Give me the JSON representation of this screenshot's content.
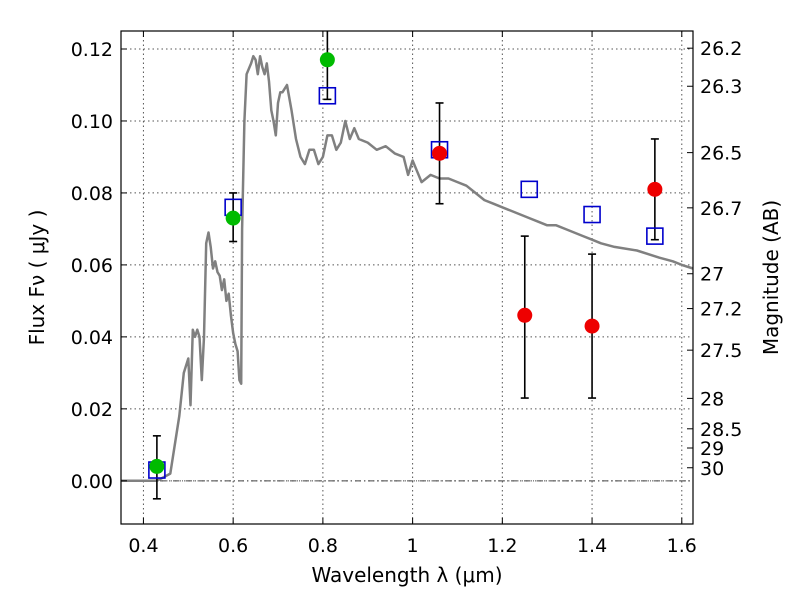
{
  "chart_data": {
    "type": "scatter",
    "title": "",
    "xlabel": "Wavelength  λ (μm)",
    "ylabel": "Flux  Fν  ( μJy )",
    "y2label": "Magnitude (AB)",
    "xlim": [
      0.35,
      1.625
    ],
    "ylim": [
      -0.012,
      0.125
    ],
    "grid": true,
    "x_ticks": [
      0.4,
      0.6,
      0.8,
      1.0,
      1.2,
      1.4,
      1.6
    ],
    "x_tick_labels": [
      "0.4",
      "0.6",
      "0.8",
      "1",
      "1.2",
      "1.4",
      "1.6"
    ],
    "y_ticks": [
      0.0,
      0.02,
      0.04,
      0.06,
      0.08,
      0.1,
      0.12
    ],
    "y_tick_labels": [
      "0.00",
      "0.02",
      "0.04",
      "0.06",
      "0.08",
      "0.10",
      "0.12"
    ],
    "mag_tick_labels": [
      "26.2",
      "26.3",
      "26.5",
      "26.7",
      "27",
      "27.2",
      "27.5",
      "28",
      "28.5",
      "29",
      "30"
    ],
    "mag_tick_values": [
      26.2,
      26.3,
      26.5,
      26.7,
      27.0,
      27.2,
      27.5,
      28.0,
      28.5,
      29.0,
      30.0
    ],
    "zero_line": true,
    "colors": {
      "model": "#808080",
      "green_points": "#00bb00",
      "red_points": "#ee0000",
      "squares": "#0000cc",
      "errorbars": "#000000",
      "frame": "#000000"
    },
    "series": [
      {
        "kind": "line",
        "x": [
          0.35,
          0.43,
          0.46,
          0.48,
          0.49,
          0.5,
          0.505,
          0.51,
          0.515,
          0.52,
          0.525,
          0.53,
          0.535,
          0.54,
          0.545,
          0.55,
          0.555,
          0.56,
          0.565,
          0.57,
          0.575,
          0.58,
          0.585,
          0.59,
          0.595,
          0.6,
          0.605,
          0.61,
          0.614,
          0.618,
          0.62,
          0.625,
          0.63,
          0.64,
          0.645,
          0.65,
          0.655,
          0.66,
          0.665,
          0.67,
          0.675,
          0.68,
          0.685,
          0.69,
          0.695,
          0.7,
          0.705,
          0.71,
          0.72,
          0.73,
          0.74,
          0.75,
          0.76,
          0.77,
          0.78,
          0.79,
          0.8,
          0.81,
          0.82,
          0.83,
          0.84,
          0.85,
          0.86,
          0.87,
          0.88,
          0.9,
          0.92,
          0.94,
          0.96,
          0.98,
          0.99,
          1.0,
          1.01,
          1.02,
          1.04,
          1.06,
          1.08,
          1.1,
          1.12,
          1.14,
          1.16,
          1.18,
          1.2,
          1.22,
          1.24,
          1.26,
          1.28,
          1.3,
          1.32,
          1.34,
          1.36,
          1.38,
          1.4,
          1.42,
          1.45,
          1.5,
          1.55,
          1.58,
          1.6,
          1.625
        ],
        "y": [
          0.0,
          0.0,
          0.002,
          0.018,
          0.03,
          0.034,
          0.021,
          0.042,
          0.04,
          0.042,
          0.04,
          0.028,
          0.04,
          0.066,
          0.069,
          0.065,
          0.059,
          0.061,
          0.058,
          0.057,
          0.053,
          0.056,
          0.05,
          0.052,
          0.046,
          0.041,
          0.038,
          0.036,
          0.028,
          0.027,
          0.07,
          0.1,
          0.113,
          0.116,
          0.118,
          0.117,
          0.113,
          0.118,
          0.115,
          0.113,
          0.116,
          0.111,
          0.103,
          0.1,
          0.096,
          0.105,
          0.108,
          0.108,
          0.11,
          0.103,
          0.095,
          0.09,
          0.088,
          0.092,
          0.092,
          0.088,
          0.09,
          0.096,
          0.096,
          0.092,
          0.094,
          0.1,
          0.095,
          0.098,
          0.095,
          0.094,
          0.092,
          0.093,
          0.091,
          0.09,
          0.085,
          0.089,
          0.086,
          0.083,
          0.085,
          0.084,
          0.084,
          0.083,
          0.082,
          0.08,
          0.078,
          0.077,
          0.076,
          0.075,
          0.074,
          0.073,
          0.072,
          0.071,
          0.071,
          0.07,
          0.069,
          0.068,
          0.067,
          0.066,
          0.065,
          0.064,
          0.062,
          0.061,
          0.06,
          0.059
        ]
      },
      {
        "kind": "points",
        "marker": "circle",
        "color": "green",
        "x": [
          0.43,
          0.6,
          0.81
        ],
        "y": [
          0.004,
          0.073,
          0.117
        ],
        "yerr_low": [
          0.009,
          0.0065,
          0.011
        ],
        "yerr_high": [
          0.0085,
          0.007,
          0.011
        ]
      },
      {
        "kind": "points",
        "marker": "circle",
        "color": "red",
        "x": [
          1.06,
          1.25,
          1.4,
          1.54
        ],
        "y": [
          0.091,
          0.046,
          0.043,
          0.081
        ],
        "yerr_low": [
          0.014,
          0.023,
          0.02,
          0.014
        ],
        "yerr_high": [
          0.014,
          0.022,
          0.02,
          0.014
        ]
      },
      {
        "kind": "points",
        "marker": "open-square",
        "color": "blue",
        "x": [
          0.43,
          0.6,
          0.81,
          1.06,
          1.26,
          1.4,
          1.54
        ],
        "y": [
          0.003,
          0.076,
          0.107,
          0.092,
          0.081,
          0.074,
          0.068
        ]
      }
    ]
  }
}
